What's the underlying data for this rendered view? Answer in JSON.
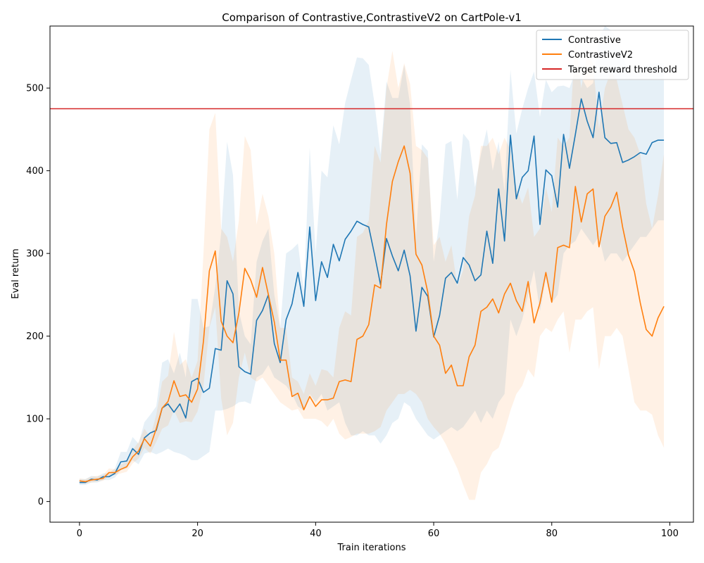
{
  "chart_data": {
    "type": "line",
    "title": "Comparison of Contrastive,ContrastiveV2 on CartPole-v1",
    "xlabel": "Train iterations",
    "ylabel": "Eval return",
    "xlim": [
      -5,
      104
    ],
    "ylim": [
      -25,
      575
    ],
    "xticks": [
      0,
      20,
      40,
      60,
      80,
      100
    ],
    "yticks": [
      0,
      100,
      200,
      300,
      400,
      500
    ],
    "legend_position": "top-right",
    "threshold": {
      "name": "Target reward threshold",
      "value": 475,
      "color": "#d62728"
    },
    "series": [
      {
        "name": "Contrastive",
        "color": "#1f77b4",
        "x": [
          0,
          1,
          2,
          3,
          4,
          5,
          6,
          7,
          8,
          9,
          10,
          11,
          12,
          13,
          14,
          15,
          16,
          17,
          18,
          19,
          20,
          21,
          22,
          23,
          24,
          25,
          26,
          27,
          28,
          29,
          30,
          31,
          32,
          33,
          34,
          35,
          36,
          37,
          38,
          39,
          40,
          41,
          42,
          43,
          44,
          45,
          46,
          47,
          48,
          49,
          50,
          51,
          52,
          53,
          54,
          55,
          56,
          57,
          58,
          59,
          60,
          61,
          62,
          63,
          64,
          65,
          66,
          67,
          68,
          69,
          70,
          71,
          72,
          73,
          74,
          75,
          76,
          77,
          78,
          79,
          80,
          81,
          82,
          83,
          84,
          85,
          86,
          87,
          88,
          89,
          90,
          91,
          92,
          93,
          94,
          95,
          96,
          97,
          98,
          99
        ],
        "mean": [
          23,
          23,
          27,
          26,
          30,
          30,
          34,
          48,
          49,
          64,
          57,
          77,
          83,
          86,
          113,
          118,
          108,
          118,
          101,
          145,
          149,
          132,
          137,
          185,
          183,
          267,
          251,
          163,
          157,
          154,
          219,
          231,
          250,
          191,
          168,
          220,
          239,
          277,
          236,
          332,
          243,
          290,
          271,
          311,
          291,
          317,
          327,
          339,
          335,
          332,
          298,
          262,
          318,
          297,
          279,
          304,
          273,
          206,
          259,
          248,
          199,
          225,
          270,
          277,
          264,
          295,
          286,
          267,
          274,
          327,
          288,
          378,
          315,
          443,
          366,
          392,
          400,
          442,
          335,
          401,
          394,
          356,
          444,
          403,
          444,
          487,
          460,
          440,
          495,
          440,
          433,
          434,
          410,
          413,
          417,
          422,
          420,
          434,
          437,
          437
        ],
        "lower": [
          20,
          20,
          23,
          23,
          26,
          26,
          29,
          38,
          40,
          50,
          45,
          58,
          60,
          57,
          60,
          64,
          60,
          58,
          55,
          50,
          50,
          55,
          60,
          110,
          110,
          112,
          115,
          120,
          121,
          118,
          150,
          154,
          165,
          150,
          145,
          140,
          130,
          115,
          110,
          130,
          120,
          130,
          110,
          115,
          120,
          95,
          80,
          80,
          85,
          80,
          80,
          70,
          80,
          95,
          100,
          120,
          115,
          100,
          90,
          80,
          75,
          80,
          85,
          90,
          85,
          90,
          100,
          110,
          95,
          110,
          100,
          120,
          130,
          220,
          200,
          220,
          250,
          280,
          230,
          270,
          240,
          250,
          300,
          310,
          315,
          330,
          320,
          310,
          320,
          290,
          300,
          300,
          290,
          300,
          310,
          320,
          320,
          330,
          340,
          340
        ],
        "upper": [
          27,
          27,
          31,
          30,
          34,
          34,
          40,
          60,
          60,
          78,
          70,
          96,
          105,
          115,
          168,
          172,
          155,
          180,
          150,
          245,
          245,
          210,
          212,
          260,
          325,
          435,
          395,
          230,
          200,
          190,
          290,
          315,
          330,
          250,
          210,
          300,
          305,
          312,
          255,
          428,
          300,
          400,
          392,
          455,
          432,
          482,
          510,
          537,
          536,
          528,
          480,
          420,
          508,
          488,
          488,
          528,
          480,
          320,
          432,
          424,
          290,
          340,
          432,
          436,
          365,
          445,
          436,
          380,
          420,
          450,
          400,
          435,
          375,
          522,
          445,
          475,
          500,
          520,
          465,
          510,
          495,
          502,
          503,
          500,
          520,
          513,
          500,
          506,
          560,
          575,
          570,
          560,
          540,
          520,
          520,
          525,
          528,
          530,
          530,
          530
        ]
      },
      {
        "name": "ContrastiveV2",
        "color": "#ff7f0e",
        "x": [
          0,
          1,
          2,
          3,
          4,
          5,
          6,
          7,
          8,
          9,
          10,
          11,
          12,
          13,
          14,
          15,
          16,
          17,
          18,
          19,
          20,
          21,
          22,
          23,
          24,
          25,
          26,
          27,
          28,
          29,
          30,
          31,
          32,
          33,
          34,
          35,
          36,
          37,
          38,
          39,
          40,
          41,
          42,
          43,
          44,
          45,
          46,
          47,
          48,
          49,
          50,
          51,
          52,
          53,
          54,
          55,
          56,
          57,
          58,
          59,
          60,
          61,
          62,
          63,
          64,
          65,
          66,
          67,
          68,
          69,
          70,
          71,
          72,
          73,
          74,
          75,
          76,
          77,
          78,
          79,
          80,
          81,
          82,
          83,
          84,
          85,
          86,
          87,
          88,
          89,
          90,
          91,
          92,
          93,
          94,
          95,
          96,
          97,
          98,
          99
        ],
        "mean": [
          25,
          24,
          26,
          27,
          28,
          35,
          35,
          39,
          42,
          54,
          61,
          76,
          67,
          88,
          113,
          121,
          146,
          127,
          129,
          120,
          136,
          194,
          279,
          303,
          218,
          200,
          192,
          228,
          282,
          268,
          247,
          283,
          250,
          217,
          171,
          171,
          127,
          131,
          111,
          127,
          115,
          123,
          123,
          125,
          145,
          147,
          145,
          196,
          200,
          214,
          262,
          258,
          335,
          387,
          411,
          430,
          397,
          299,
          286,
          253,
          200,
          189,
          155,
          165,
          140,
          140,
          175,
          189,
          230,
          235,
          245,
          228,
          251,
          264,
          243,
          230,
          266,
          216,
          240,
          277,
          241,
          307,
          310,
          307,
          381,
          338,
          372,
          378,
          308,
          345,
          356,
          374,
          332,
          298,
          278,
          240,
          208,
          200,
          222,
          236
        ],
        "lower": [
          22,
          22,
          23,
          24,
          25,
          31,
          32,
          34,
          36,
          46,
          52,
          65,
          58,
          72,
          88,
          92,
          110,
          95,
          97,
          96,
          109,
          140,
          210,
          235,
          125,
          80,
          95,
          150,
          180,
          150,
          145,
          150,
          140,
          130,
          120,
          115,
          110,
          112,
          100,
          100,
          100,
          97,
          90,
          100,
          82,
          75,
          78,
          82,
          82,
          82,
          85,
          90,
          110,
          120,
          130,
          130,
          135,
          130,
          120,
          100,
          90,
          82,
          70,
          55,
          40,
          20,
          2,
          2,
          35,
          45,
          60,
          65,
          85,
          110,
          130,
          140,
          160,
          150,
          200,
          210,
          205,
          220,
          230,
          180,
          220,
          220,
          230,
          235,
          160,
          200,
          200,
          210,
          200,
          160,
          120,
          110,
          110,
          105,
          80,
          65
        ],
        "upper": [
          28,
          27,
          30,
          31,
          32,
          40,
          39,
          45,
          48,
          62,
          72,
          88,
          78,
          105,
          145,
          152,
          205,
          165,
          172,
          150,
          170,
          300,
          450,
          470,
          330,
          320,
          290,
          340,
          442,
          425,
          335,
          372,
          345,
          300,
          210,
          210,
          150,
          145,
          130,
          155,
          140,
          160,
          158,
          150,
          210,
          230,
          225,
          320,
          325,
          340,
          430,
          410,
          500,
          545,
          500,
          530,
          505,
          430,
          425,
          415,
          310,
          320,
          290,
          310,
          260,
          280,
          345,
          370,
          430,
          430,
          440,
          420,
          440,
          425,
          380,
          360,
          380,
          320,
          330,
          380,
          350,
          440,
          430,
          440,
          560,
          500,
          540,
          530,
          450,
          500,
          520,
          510,
          480,
          450,
          440,
          420,
          360,
          330,
          370,
          420
        ]
      }
    ]
  }
}
